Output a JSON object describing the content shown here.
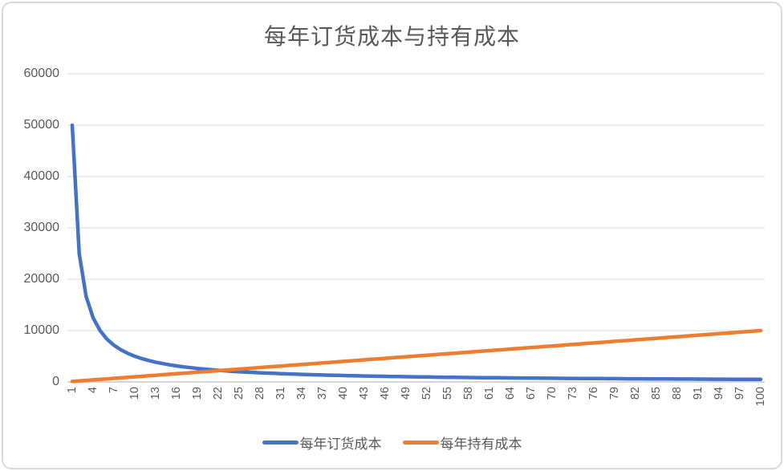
{
  "chart": {
    "title": "每年订货成本与持有成本"
  },
  "chart_data": {
    "type": "line",
    "title": "每年订货成本与持有成本",
    "xlabel": "",
    "ylabel": "",
    "ylim": [
      0,
      60000
    ],
    "grid": true,
    "legend_position": "bottom",
    "axis_text_color": "#595959",
    "gridline_color": "#D9D9D9",
    "y_ticks": [
      0,
      10000,
      20000,
      30000,
      40000,
      50000,
      60000
    ],
    "x_tick_labels": [
      1,
      4,
      7,
      10,
      13,
      16,
      19,
      22,
      25,
      28,
      31,
      34,
      37,
      40,
      43,
      46,
      49,
      52,
      55,
      58,
      61,
      64,
      67,
      70,
      73,
      76,
      79,
      82,
      85,
      88,
      91,
      94,
      97,
      100
    ],
    "x": [
      1,
      2,
      3,
      4,
      5,
      6,
      7,
      8,
      9,
      10,
      11,
      12,
      13,
      14,
      15,
      16,
      17,
      18,
      19,
      20,
      21,
      22,
      23,
      24,
      25,
      26,
      27,
      28,
      29,
      30,
      31,
      32,
      33,
      34,
      35,
      36,
      37,
      38,
      39,
      40,
      41,
      42,
      43,
      44,
      45,
      46,
      47,
      48,
      49,
      50,
      51,
      52,
      53,
      54,
      55,
      56,
      57,
      58,
      59,
      60,
      61,
      62,
      63,
      64,
      65,
      66,
      67,
      68,
      69,
      70,
      71,
      72,
      73,
      74,
      75,
      76,
      77,
      78,
      79,
      80,
      81,
      82,
      83,
      84,
      85,
      86,
      87,
      88,
      89,
      90,
      91,
      92,
      93,
      94,
      95,
      96,
      97,
      98,
      99,
      100
    ],
    "series": [
      {
        "name": "每年订货成本",
        "color": "#4472C4",
        "values": [
          50000,
          25000,
          16667,
          12500,
          10000,
          8333,
          7143,
          6250,
          5556,
          5000,
          4545,
          4167,
          3846,
          3571,
          3333,
          3125,
          2941,
          2778,
          2632,
          2500,
          2381,
          2273,
          2174,
          2083,
          2000,
          1923,
          1852,
          1786,
          1724,
          1667,
          1613,
          1563,
          1515,
          1471,
          1429,
          1389,
          1351,
          1316,
          1282,
          1250,
          1220,
          1190,
          1163,
          1136,
          1111,
          1087,
          1064,
          1042,
          1020,
          1000,
          980,
          962,
          943,
          926,
          909,
          893,
          877,
          862,
          847,
          833,
          820,
          806,
          794,
          781,
          769,
          758,
          746,
          735,
          725,
          714,
          704,
          694,
          685,
          676,
          667,
          658,
          649,
          641,
          633,
          625,
          617,
          610,
          602,
          595,
          588,
          581,
          575,
          568,
          562,
          556,
          549,
          543,
          538,
          532,
          526,
          521,
          515,
          510,
          505,
          500
        ]
      },
      {
        "name": "每年持有成本",
        "color": "#ED7D31",
        "values": [
          100,
          200,
          300,
          400,
          500,
          600,
          700,
          800,
          900,
          1000,
          1100,
          1200,
          1300,
          1400,
          1500,
          1600,
          1700,
          1800,
          1900,
          2000,
          2100,
          2200,
          2300,
          2400,
          2500,
          2600,
          2700,
          2800,
          2900,
          3000,
          3100,
          3200,
          3300,
          3400,
          3500,
          3600,
          3700,
          3800,
          3900,
          4000,
          4100,
          4200,
          4300,
          4400,
          4500,
          4600,
          4700,
          4800,
          4900,
          5000,
          5100,
          5200,
          5300,
          5400,
          5500,
          5600,
          5700,
          5800,
          5900,
          6000,
          6100,
          6200,
          6300,
          6400,
          6500,
          6600,
          6700,
          6800,
          6900,
          7000,
          7100,
          7200,
          7300,
          7400,
          7500,
          7600,
          7700,
          7800,
          7900,
          8000,
          8100,
          8200,
          8300,
          8400,
          8500,
          8600,
          8700,
          8800,
          8900,
          9000,
          9100,
          9200,
          9300,
          9400,
          9500,
          9600,
          9700,
          9800,
          9900,
          10000
        ]
      }
    ]
  }
}
